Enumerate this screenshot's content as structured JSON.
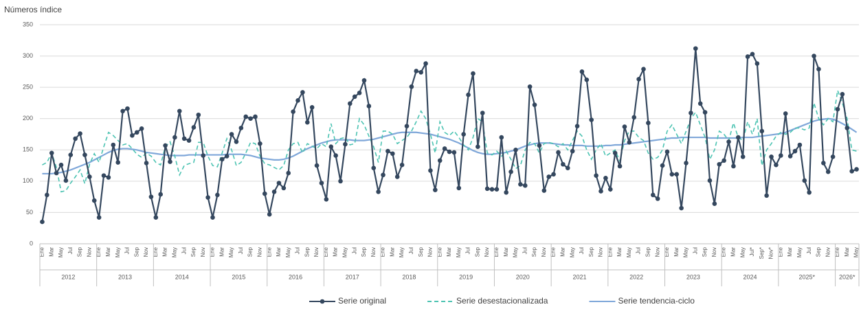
{
  "chart_data": {
    "type": "line",
    "y_label": "Números índice",
    "categories": [
      "Ene",
      null,
      "Mar",
      null,
      "May",
      null,
      "Jul",
      null,
      "Sep",
      null,
      "Nov",
      null,
      "Ene",
      null,
      "Mar",
      null,
      "May",
      null,
      "Jul",
      null,
      "Sep",
      null,
      "Nov",
      null,
      "Ene",
      null,
      "Mar",
      null,
      "May",
      null,
      "Jul",
      null,
      "Sep",
      null,
      "Nov",
      null,
      "Ene",
      null,
      "Mar",
      null,
      "May",
      null,
      "Jul",
      null,
      "Sep",
      null,
      "Nov",
      null,
      "Ene",
      null,
      "Mar",
      null,
      "May",
      null,
      "Jul",
      null,
      "Sep",
      null,
      "Nov",
      null,
      "Ene",
      null,
      "Mar",
      null,
      "May",
      null,
      "Jul",
      null,
      "Sep",
      null,
      "Nov",
      null,
      "Ene",
      null,
      "Mar",
      null,
      "May",
      null,
      "Jul",
      null,
      "Sep",
      null,
      "Nov",
      null,
      "Ene",
      null,
      "Mar",
      null,
      "May",
      null,
      "Jul",
      null,
      "Sep",
      null,
      "Nov",
      null,
      "Ene",
      null,
      "Mar",
      null,
      "May",
      null,
      "Jul",
      null,
      "Sep",
      null,
      "Nov",
      null,
      "Ene",
      null,
      "Mar",
      null,
      "May",
      null,
      "Jul",
      null,
      "Sep",
      null,
      "Nov",
      null,
      "Ene",
      null,
      "Mar",
      null,
      "May",
      null,
      "Jul",
      null,
      "Sep",
      null,
      "Nov",
      null,
      "Ene",
      null,
      "Mar",
      null,
      "May",
      null,
      "Jul",
      null,
      "Sep",
      null,
      "Nov",
      null,
      "Ene",
      null,
      "Mar",
      null,
      "May",
      null,
      "Jul*",
      null,
      "Sep*",
      null,
      "Nov*",
      null,
      "Ene",
      null,
      "Mar",
      null,
      "May",
      null,
      "Jul",
      null,
      "Sep",
      null,
      "Nov",
      null,
      "Ene",
      null,
      "Mar",
      null,
      "May"
    ],
    "years": [
      "2012",
      "2013",
      "2014",
      "2015",
      "2016",
      "2017",
      "2018",
      "2019",
      "2020",
      "2021",
      "2022",
      "2023",
      "2024",
      "2025*",
      "2026*"
    ],
    "ylim": [
      0,
      350
    ],
    "yticks": [
      0,
      50,
      100,
      150,
      200,
      250,
      300,
      350
    ],
    "grid": true,
    "legend": "bottom",
    "series": [
      {
        "name": "Serie original",
        "color": "#34475e",
        "line_style": "solid",
        "marker": true,
        "values": [
          35,
          78,
          145,
          113,
          126,
          101,
          142,
          168,
          176,
          142,
          107,
          69,
          42,
          109,
          106,
          158,
          130,
          212,
          216,
          173,
          178,
          184,
          129,
          75,
          42,
          79,
          157,
          131,
          170,
          212,
          168,
          165,
          186,
          206,
          141,
          74,
          42,
          78,
          135,
          140,
          175,
          163,
          185,
          203,
          200,
          203,
          160,
          80,
          47,
          83,
          97,
          89,
          113,
          211,
          229,
          242,
          194,
          218,
          125,
          97,
          71,
          155,
          141,
          100,
          159,
          224,
          235,
          241,
          261,
          220,
          121,
          83,
          110,
          148,
          144,
          107,
          126,
          188,
          251,
          276,
          274,
          288,
          117,
          86,
          133,
          152,
          147,
          146,
          89,
          175,
          238,
          272,
          155,
          209,
          88,
          87,
          87,
          170,
          82,
          115,
          150,
          95,
          93,
          251,
          222,
          157,
          85,
          107,
          111,
          146,
          127,
          121,
          148,
          188,
          275,
          262,
          198,
          109,
          84,
          105,
          87,
          145,
          124,
          187,
          162,
          202,
          263,
          279,
          193,
          78,
          72,
          125,
          147,
          111,
          111,
          57,
          129,
          209,
          312,
          224,
          210,
          101,
          64,
          127,
          133,
          163,
          124,
          170,
          139,
          299,
          303,
          288,
          180,
          77,
          139,
          126,
          141,
          208,
          140,
          148,
          158,
          101,
          82,
          300,
          279,
          129,
          115,
          139,
          215,
          239,
          185,
          116,
          119
        ]
      },
      {
        "name": "Serie desestacionalizada",
        "color": "#4cc3b2",
        "line_style": "dashed",
        "marker": false,
        "values": [
          126,
          130,
          145,
          122,
          83,
          85,
          97,
          107,
          118,
          96,
          127,
          144,
          130,
          155,
          178,
          173,
          165,
          158,
          160,
          152,
          143,
          138,
          145,
          140,
          130,
          126,
          155,
          163,
          140,
          110,
          125,
          128,
          130,
          162,
          162,
          140,
          125,
          123,
          145,
          168,
          150,
          125,
          130,
          145,
          162,
          160,
          140,
          128,
          126,
          122,
          118,
          125,
          150,
          160,
          162,
          145,
          160,
          156,
          152,
          160,
          155,
          192,
          160,
          168,
          170,
          158,
          160,
          200,
          190,
          172,
          155,
          130,
          180,
          180,
          175,
          160,
          165,
          170,
          180,
          195,
          212,
          200,
          175,
          145,
          195,
          178,
          173,
          180,
          170,
          158,
          150,
          170,
          200,
          195,
          145,
          142,
          148,
          140,
          148,
          135,
          120,
          125,
          150,
          162,
          160,
          145,
          160,
          162,
          160,
          155,
          160,
          150,
          165,
          180,
          172,
          150,
          135,
          150,
          160,
          140,
          145,
          150,
          132,
          165,
          180,
          180,
          170,
          165,
          145,
          135,
          138,
          150,
          180,
          190,
          175,
          160,
          180,
          200,
          210,
          190,
          170,
          135,
          150,
          180,
          175,
          165,
          193,
          170,
          165,
          195,
          175,
          200,
          125,
          150,
          160,
          172,
          178,
          175,
          178,
          185,
          185,
          182,
          185,
          225,
          200,
          190,
          200,
          195,
          245,
          225,
          200,
          150,
          148
        ]
      },
      {
        "name": "Serie tendencia-ciclo",
        "color": "#7fa7d9",
        "line_style": "solid",
        "marker": false,
        "values": [
          112,
          112,
          112,
          113,
          114,
          116,
          118,
          121,
          124,
          127,
          130,
          134,
          138,
          142,
          146,
          149,
          151,
          152,
          152,
          151,
          150,
          148,
          146,
          145,
          144,
          143,
          142,
          141,
          141,
          141,
          141,
          142,
          142,
          142,
          142,
          142,
          142,
          142,
          142,
          143,
          143,
          143,
          143,
          142,
          141,
          139,
          137,
          136,
          135,
          134,
          134,
          135,
          137,
          140,
          144,
          148,
          152,
          155,
          158,
          161,
          163,
          165,
          166,
          166,
          166,
          166,
          165,
          165,
          165,
          166,
          167,
          169,
          171,
          173,
          175,
          177,
          178,
          178,
          178,
          178,
          177,
          176,
          175,
          173,
          171,
          169,
          167,
          164,
          161,
          157,
          153,
          149,
          146,
          144,
          143,
          143,
          144,
          145,
          146,
          148,
          150,
          153,
          156,
          158,
          160,
          161,
          161,
          161,
          160,
          159,
          158,
          158,
          157,
          157,
          157,
          156,
          156,
          156,
          156,
          157,
          157,
          158,
          158,
          159,
          160,
          161,
          162,
          163,
          164,
          165,
          166,
          167,
          168,
          169,
          169,
          170,
          170,
          170,
          170,
          170,
          170,
          169,
          169,
          169,
          169,
          169,
          169,
          169,
          170,
          170,
          170,
          171,
          172,
          173,
          174,
          175,
          176,
          178,
          181,
          184,
          187,
          190,
          193,
          196,
          198,
          199,
          200,
          199,
          196,
          192,
          188,
          183,
          178
        ]
      }
    ]
  }
}
